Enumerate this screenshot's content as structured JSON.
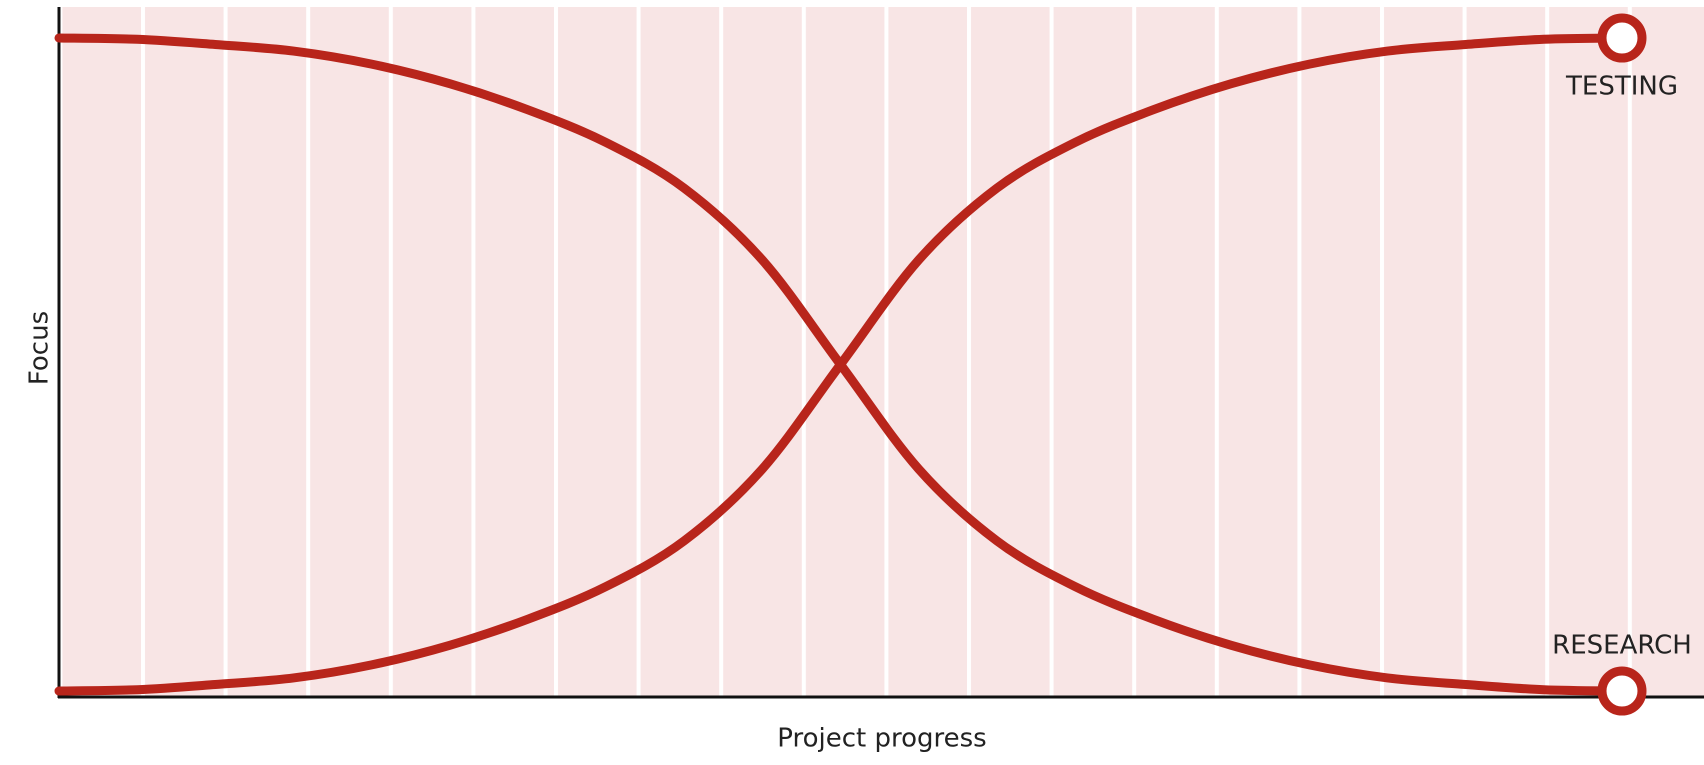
{
  "chart_data": {
    "type": "line",
    "x_label": "Project progress",
    "y_label": "Focus",
    "x": [
      0,
      5,
      10,
      15,
      20,
      25,
      30,
      35,
      40,
      45,
      50,
      55,
      60,
      65,
      70,
      75,
      80,
      85,
      90,
      95,
      100
    ],
    "series": [
      {
        "name": "TESTING",
        "color": "#b8251b",
        "values": [
          0,
          0.2,
          1,
          2,
          4,
          7,
          11,
          16,
          23,
          34,
          50,
          66,
          77,
          84,
          89,
          93,
          96,
          98,
          99,
          99.8,
          100
        ]
      },
      {
        "name": "RESEARCH",
        "color": "#b8251b",
        "values": [
          100,
          99.8,
          99,
          98,
          96,
          93,
          89,
          84,
          77,
          66,
          50,
          34,
          23,
          16,
          11,
          7,
          4,
          2,
          1,
          0.2,
          0
        ]
      }
    ],
    "xlim": [
      0,
      100
    ],
    "ylim": [
      0,
      100
    ]
  }
}
